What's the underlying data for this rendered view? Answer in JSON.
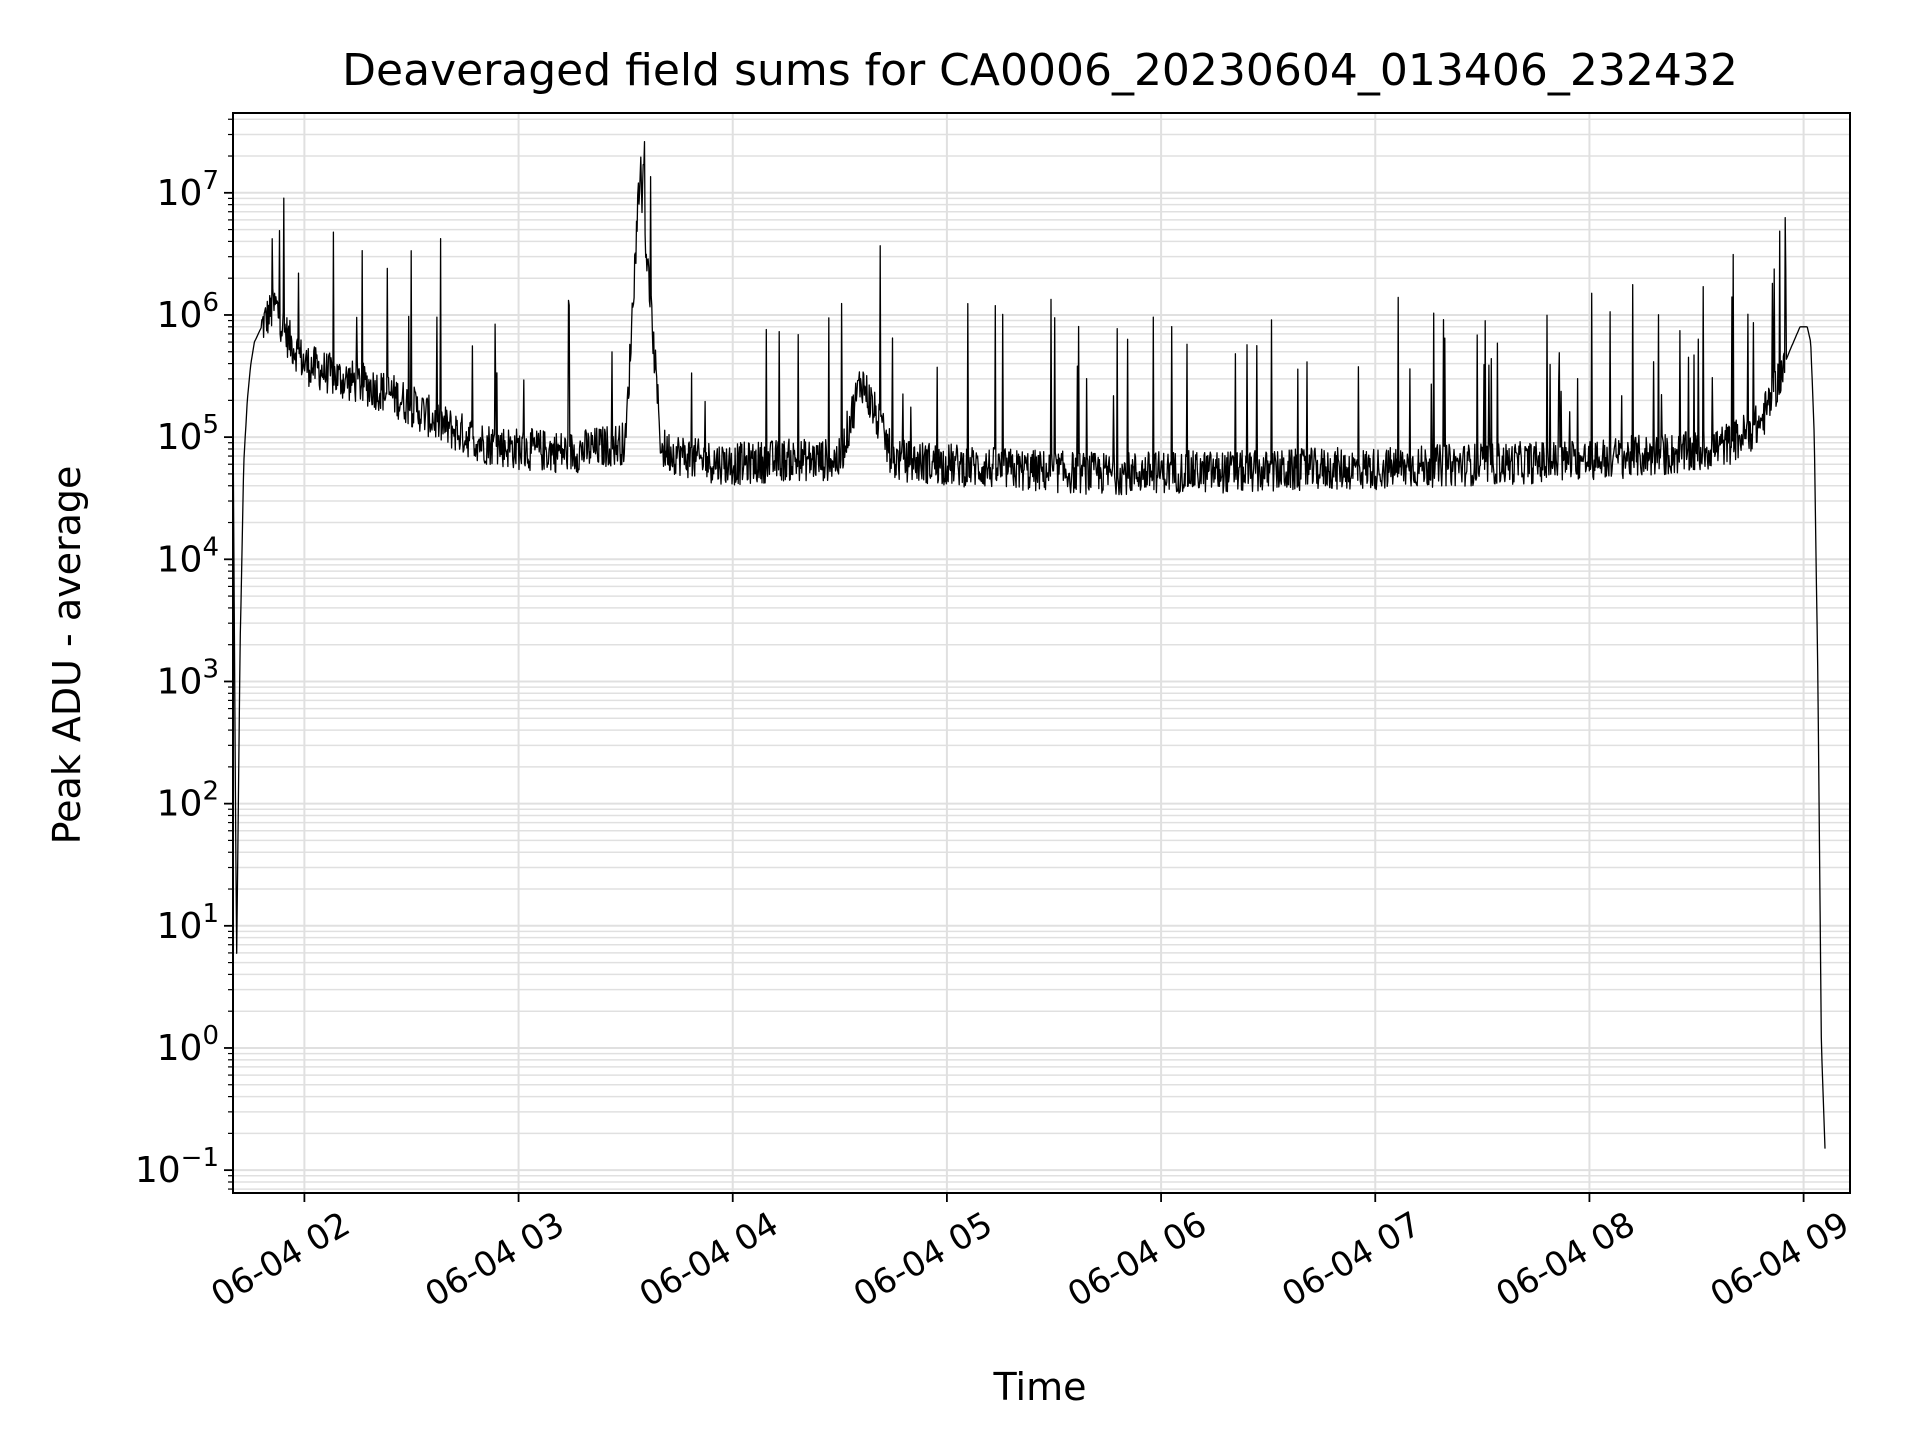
{
  "chart_data": {
    "type": "line",
    "title": "Deaveraged field sums for CA0006_20230604_013406_232432",
    "xlabel": "Time",
    "ylabel": "Peak ADU - average",
    "yscale": "log",
    "ylim": [
      0.065,
      45000000
    ],
    "xlim": [
      "2023-06-04T01:40",
      "2023-06-04T09:13"
    ],
    "grid": true,
    "line_color": "#000000",
    "grid_color": "#e0e0e0",
    "xticks": [
      {
        "value": "2023-06-04T02:00",
        "label": "06-04 02"
      },
      {
        "value": "2023-06-04T03:00",
        "label": "06-04 03"
      },
      {
        "value": "2023-06-04T04:00",
        "label": "06-04 04"
      },
      {
        "value": "2023-06-04T05:00",
        "label": "06-04 05"
      },
      {
        "value": "2023-06-04T06:00",
        "label": "06-04 06"
      },
      {
        "value": "2023-06-04T07:00",
        "label": "06-04 07"
      },
      {
        "value": "2023-06-04T08:00",
        "label": "06-04 08"
      },
      {
        "value": "2023-06-04T09:00",
        "label": "06-04 09"
      }
    ],
    "yticks": [
      {
        "value": 0.1,
        "label": "10",
        "exp": "−1"
      },
      {
        "value": 1,
        "label": "10",
        "exp": "0"
      },
      {
        "value": 10,
        "label": "10",
        "exp": "1"
      },
      {
        "value": 100,
        "label": "10",
        "exp": "2"
      },
      {
        "value": 1000,
        "label": "10",
        "exp": "3"
      },
      {
        "value": 10000,
        "label": "10",
        "exp": "4"
      },
      {
        "value": 100000,
        "label": "10",
        "exp": "5"
      },
      {
        "value": 1000000,
        "label": "10",
        "exp": "6"
      },
      {
        "value": 10000000,
        "label": "10",
        "exp": "7"
      }
    ],
    "series": [
      {
        "x": [
          "2023-06-04T01:40",
          "2023-06-04T01:41",
          "2023-06-04T01:42",
          "2023-06-04T01:43",
          "2023-06-04T01:44",
          "2023-06-04T01:45",
          "2023-06-04T01:46",
          "2023-06-04T01:48",
          "2023-06-04T01:50",
          "2023-06-04T01:52",
          "2023-06-04T01:54",
          "2023-06-04T01:56",
          "2023-06-04T01:58",
          "2023-06-04T02:00",
          "2023-06-04T02:05",
          "2023-06-04T02:10",
          "2023-06-04T02:15",
          "2023-06-04T02:20",
          "2023-06-04T02:25",
          "2023-06-04T02:30",
          "2023-06-04T02:40",
          "2023-06-04T02:50",
          "2023-06-04T03:00",
          "2023-06-04T03:15",
          "2023-06-04T03:30",
          "2023-06-04T03:34",
          "2023-06-04T03:40",
          "2023-06-04T03:50",
          "2023-06-04T04:00",
          "2023-06-04T04:15",
          "2023-06-04T04:30",
          "2023-06-04T04:36",
          "2023-06-04T04:45",
          "2023-06-04T05:00",
          "2023-06-04T05:15",
          "2023-06-04T05:30",
          "2023-06-04T05:45",
          "2023-06-04T06:00",
          "2023-06-04T06:15",
          "2023-06-04T06:30",
          "2023-06-04T06:45",
          "2023-06-04T07:00",
          "2023-06-04T07:15",
          "2023-06-04T07:30",
          "2023-06-04T07:45",
          "2023-06-04T08:00",
          "2023-06-04T08:15",
          "2023-06-04T08:30",
          "2023-06-04T08:40",
          "2023-06-04T08:48",
          "2023-06-04T08:52",
          "2023-06-04T08:56",
          "2023-06-04T08:59",
          "2023-06-04T09:01",
          "2023-06-04T09:02",
          "2023-06-04T09:03",
          "2023-06-04T09:04",
          "2023-06-04T09:05",
          "2023-06-04T09:06"
        ],
        "y": [
          150000,
          5,
          2000,
          60000,
          200000,
          400000,
          600000,
          800000,
          1000000,
          1200000,
          800000,
          600000,
          500000,
          400000,
          350000,
          300000,
          280000,
          250000,
          220000,
          180000,
          120000,
          90000,
          80000,
          75000,
          90000,
          17000000,
          80000,
          65000,
          60000,
          65000,
          65000,
          300000,
          65000,
          60000,
          55000,
          52000,
          50000,
          52000,
          52000,
          52000,
          55000,
          55000,
          58000,
          60000,
          62000,
          65000,
          70000,
          75000,
          90000,
          130000,
          250000,
          500000,
          800000,
          800000,
          600000,
          100000,
          1000,
          1,
          0.15
        ]
      }
    ],
    "spikes": [
      {
        "x": "2023-06-04T01:51",
        "y": 4200000
      },
      {
        "x": "2023-06-04T03:35",
        "y": 17000000
      },
      {
        "x": "2023-06-04T08:55",
        "y": 2300000
      }
    ]
  }
}
